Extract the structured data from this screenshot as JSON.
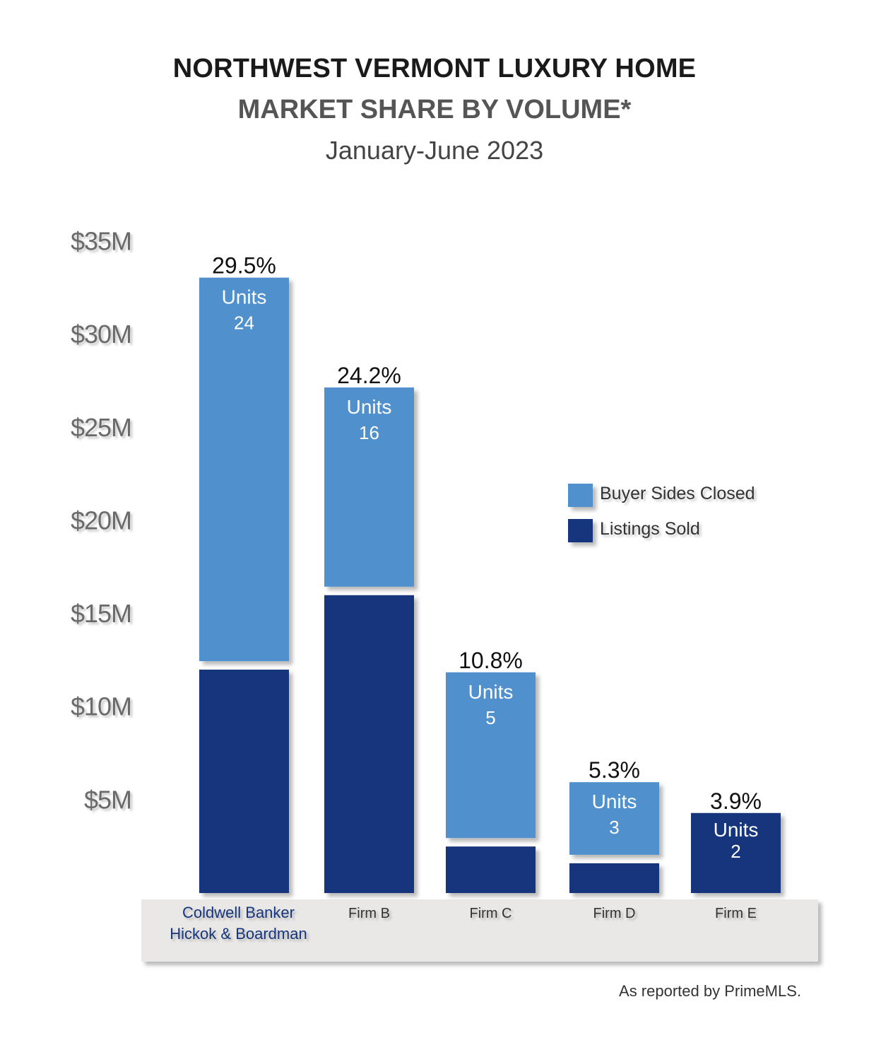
{
  "title": "NORTHWEST VERMONT LUXURY HOME",
  "subtitle": "MARKET SHARE BY VOLUME*",
  "period": "January-June 2023",
  "footer": "As reported by PrimeMLS.",
  "colors": {
    "buyer_sides": "#4f90cd",
    "listings_sold": "#14347b",
    "axis_text": "#6b6b6b",
    "category_band": "#e9e8e6",
    "first_category_text": "#14347b"
  },
  "chart_data": {
    "type": "bar",
    "stacked": true,
    "y_unit": "USD millions",
    "ylim": [
      0,
      35
    ],
    "yticks": [
      {
        "value": 5,
        "label": "$5M"
      },
      {
        "value": 10,
        "label": "$10M"
      },
      {
        "value": 15,
        "label": "$15M"
      },
      {
        "value": 20,
        "label": "$20M"
      },
      {
        "value": 25,
        "label": "$25M"
      },
      {
        "value": 30,
        "label": "$30M"
      },
      {
        "value": 35,
        "label": "$35M"
      }
    ],
    "categories": [
      [
        "Coldwell Banker",
        "Hickok & Boardman"
      ],
      [
        "Firm B"
      ],
      [
        "Firm C"
      ],
      [
        "Firm D"
      ],
      [
        "Firm E"
      ]
    ],
    "series": [
      {
        "name": "Listings Sold",
        "values": [
          12.0,
          16.0,
          2.5,
          1.6,
          4.3
        ]
      },
      {
        "name": "Buyer Sides Closed",
        "values": [
          20.6,
          10.7,
          8.9,
          3.9,
          0
        ]
      }
    ],
    "share_labels": [
      "29.5%",
      "24.2%",
      "10.8%",
      "5.3%",
      "3.9%"
    ],
    "unit_label": "Units",
    "unit_counts": [
      "24",
      "16",
      "5",
      "3",
      "2"
    ],
    "legend": {
      "placement": "right",
      "entries": [
        {
          "label": "Buyer Sides Closed",
          "series": "Buyer Sides Closed"
        },
        {
          "label": "Listings Sold",
          "series": "Listings Sold"
        }
      ]
    },
    "grid": false
  }
}
